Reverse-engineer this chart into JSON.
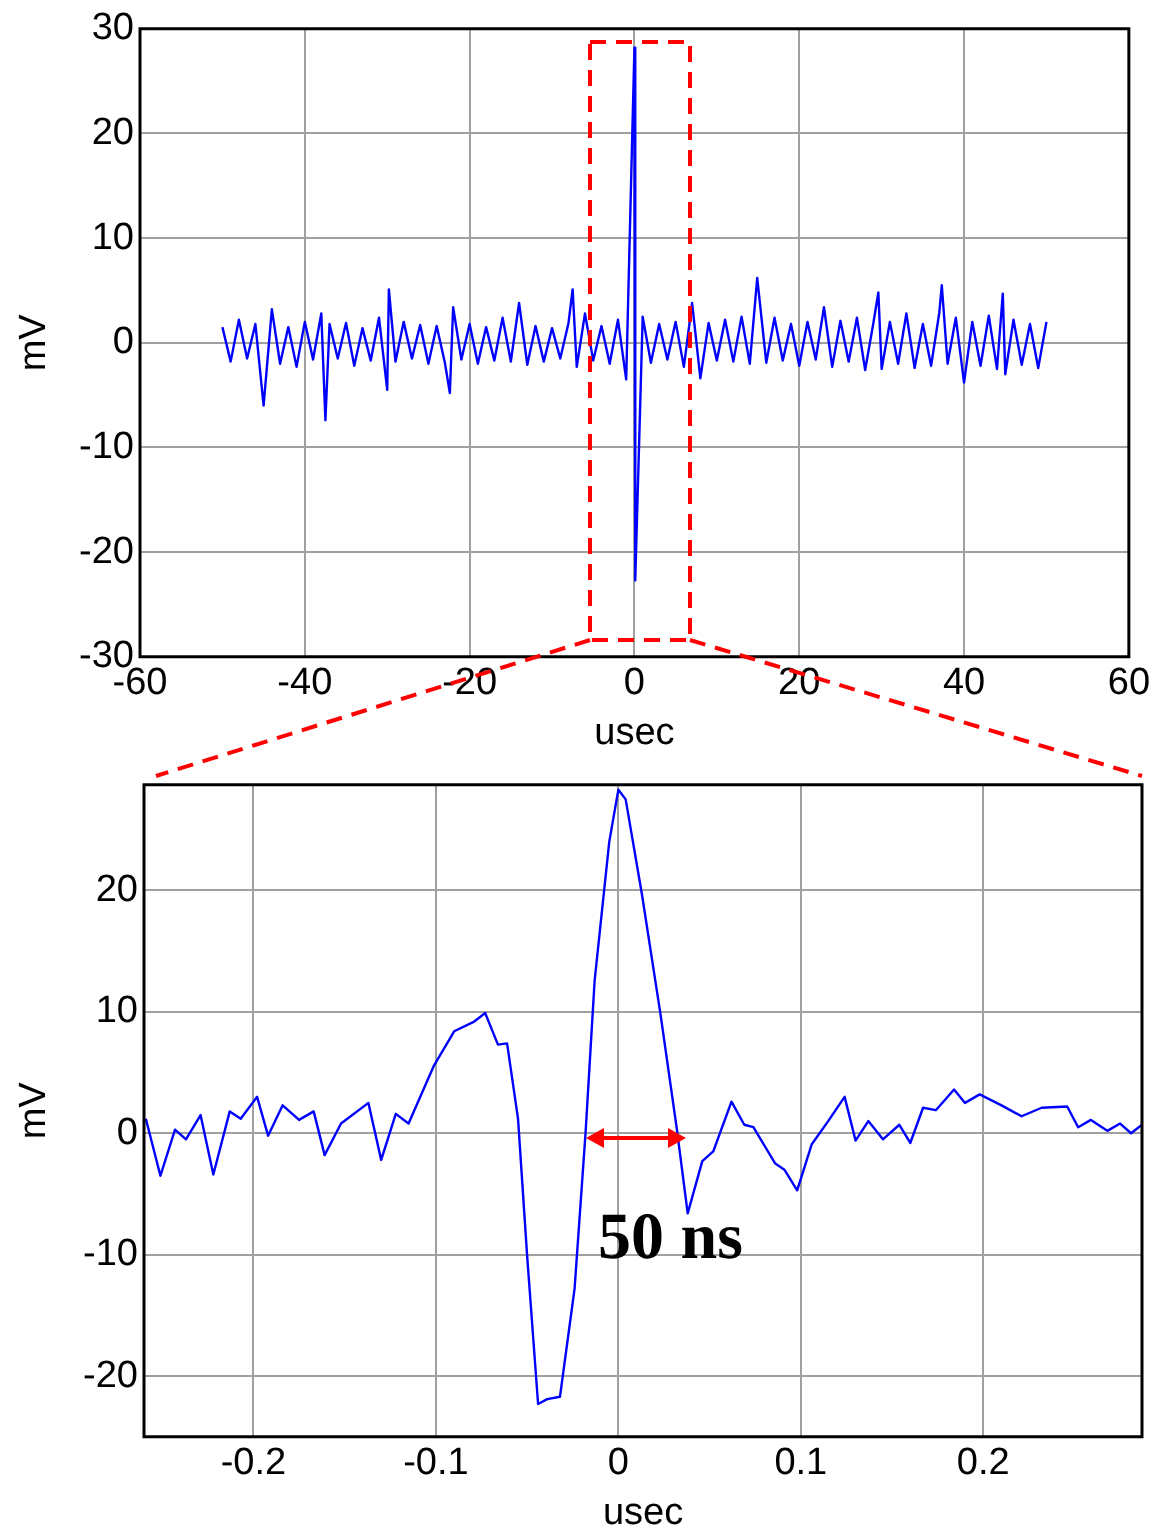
{
  "chart_data": [
    {
      "type": "line",
      "xlabel": "usec",
      "ylabel": "mV",
      "xlim": [
        -60,
        60
      ],
      "ylim": [
        -30,
        30
      ],
      "xticks": [
        -60,
        -40,
        -20,
        0,
        20,
        40,
        60
      ],
      "yticks": [
        -30,
        -20,
        -10,
        0,
        10,
        20,
        30
      ],
      "grid": true,
      "legend": false,
      "marker": "none",
      "line_style": "solid",
      "series": [
        {
          "color": "#0000ff",
          "x": [
            -50,
            -49,
            -48,
            -47,
            -46,
            -45,
            -44,
            -43,
            -42,
            -41,
            -40,
            -39,
            -38,
            -37.5,
            -37,
            -36,
            -35,
            -34,
            -33,
            -32,
            -31,
            -30,
            -29.8,
            -29,
            -28,
            -27,
            -26,
            -25,
            -24,
            -23,
            -22.4,
            -22,
            -21,
            -20,
            -19,
            -18,
            -17,
            -16,
            -15,
            -14,
            -13,
            -12,
            -11,
            -10,
            -9,
            -8,
            -7.5,
            -7,
            -6,
            -5,
            -4,
            -3,
            -2,
            -1,
            0,
            0.1,
            1,
            2,
            3,
            4,
            5,
            6,
            7,
            8,
            9,
            10,
            11,
            12,
            13,
            14,
            14.9,
            16,
            17,
            18,
            19,
            20,
            21,
            22,
            23,
            24,
            25,
            26,
            27,
            28,
            29,
            29.6,
            30,
            31,
            32,
            33,
            34,
            35,
            36,
            37,
            37.3,
            38,
            39,
            40,
            41,
            42,
            43,
            44,
            44.7,
            45,
            46,
            47,
            48,
            49,
            50
          ],
          "values": [
            1.5,
            -1.8,
            2.2,
            -1.5,
            1.8,
            -6.0,
            3.2,
            -2.0,
            1.5,
            -2.3,
            2.0,
            -1.6,
            2.8,
            -7.4,
            1.8,
            -1.5,
            1.9,
            -2.2,
            1.4,
            -1.7,
            2.4,
            -4.5,
            5.1,
            -1.8,
            2.0,
            -1.5,
            1.7,
            -2.0,
            1.6,
            -1.9,
            -4.8,
            3.4,
            -1.6,
            1.8,
            -2.0,
            1.5,
            -1.7,
            2.4,
            -1.8,
            3.8,
            -2.1,
            1.6,
            -1.8,
            1.4,
            -1.5,
            1.9,
            5.1,
            -2.3,
            2.8,
            -1.7,
            1.6,
            -2.0,
            2.2,
            -3.5,
            28.2,
            -22.7,
            2.5,
            -1.9,
            1.8,
            -1.6,
            2.0,
            -2.3,
            3.8,
            -3.4,
            1.9,
            -1.7,
            2.2,
            -1.8,
            2.5,
            -2.0,
            6.2,
            -1.9,
            2.4,
            -1.7,
            1.8,
            -2.2,
            2.0,
            -1.6,
            3.4,
            -2.3,
            2.1,
            -1.8,
            2.4,
            -2.6,
            1.9,
            4.8,
            -2.5,
            2.0,
            -2.0,
            2.8,
            -2.4,
            1.8,
            -2.2,
            2.9,
            5.5,
            -2.0,
            2.4,
            -3.8,
            2.0,
            -2.2,
            2.6,
            -2.5,
            4.7,
            -3.0,
            2.2,
            -2.1,
            1.8,
            -2.4,
            2.0
          ]
        }
      ]
    },
    {
      "type": "line",
      "xlabel": "usec",
      "ylabel": "mV",
      "xlim": [
        -0.26,
        0.287
      ],
      "ylim": [
        -25,
        28.7
      ],
      "xticks": [
        -0.2,
        -0.1,
        0,
        0.1,
        0.2
      ],
      "yticks": [
        -20,
        -10,
        0,
        10,
        20
      ],
      "grid": true,
      "legend": false,
      "marker": "none",
      "line_style": "solid",
      "annotations": [
        "50 ns"
      ],
      "series": [
        {
          "color": "#0000ff",
          "x": [
            -0.259,
            -0.251,
            -0.243,
            -0.237,
            -0.229,
            -0.222,
            -0.213,
            -0.207,
            -0.198,
            -0.192,
            -0.184,
            -0.175,
            -0.167,
            -0.161,
            -0.152,
            -0.137,
            -0.13,
            -0.122,
            -0.115,
            -0.101,
            -0.09,
            -0.079,
            -0.073,
            -0.066,
            -0.061,
            -0.055,
            -0.05,
            -0.044,
            -0.039,
            -0.032,
            -0.024,
            -0.018,
            -0.013,
            -0.005,
            0,
            0.004,
            0.013,
            0.023,
            0.032,
            0.038,
            0.046,
            0.052,
            0.062,
            0.069,
            0.074,
            0.086,
            0.091,
            0.098,
            0.106,
            0.115,
            0.124,
            0.13,
            0.137,
            0.145,
            0.154,
            0.16,
            0.167,
            0.174,
            0.184,
            0.19,
            0.198,
            0.21,
            0.221,
            0.232,
            0.246,
            0.252,
            0.259,
            0.268,
            0.275,
            0.281,
            0.287
          ],
          "values": [
            1.2,
            -3.5,
            0.3,
            -0.5,
            1.5,
            -3.4,
            1.8,
            1.2,
            3.0,
            -0.2,
            2.3,
            1.1,
            1.8,
            -1.8,
            0.8,
            2.5,
            -2.2,
            1.6,
            0.8,
            5.6,
            8.4,
            9.2,
            9.9,
            7.3,
            7.4,
            1.2,
            -10.1,
            -22.3,
            -21.9,
            -21.7,
            -12.8,
            0,
            12.6,
            24.0,
            28.3,
            27.5,
            19.6,
            9.9,
            0.4,
            -6.6,
            -2.3,
            -1.5,
            2.6,
            0.7,
            0.5,
            -2.5,
            -3.0,
            -4.7,
            -0.9,
            1.0,
            3.0,
            -0.6,
            1.0,
            -0.5,
            0.7,
            -0.8,
            2.1,
            1.9,
            3.6,
            2.5,
            3.2,
            2.3,
            1.4,
            2.1,
            2.2,
            0.5,
            1.1,
            0.2,
            0.8,
            0,
            0.7
          ]
        }
      ]
    }
  ]
}
